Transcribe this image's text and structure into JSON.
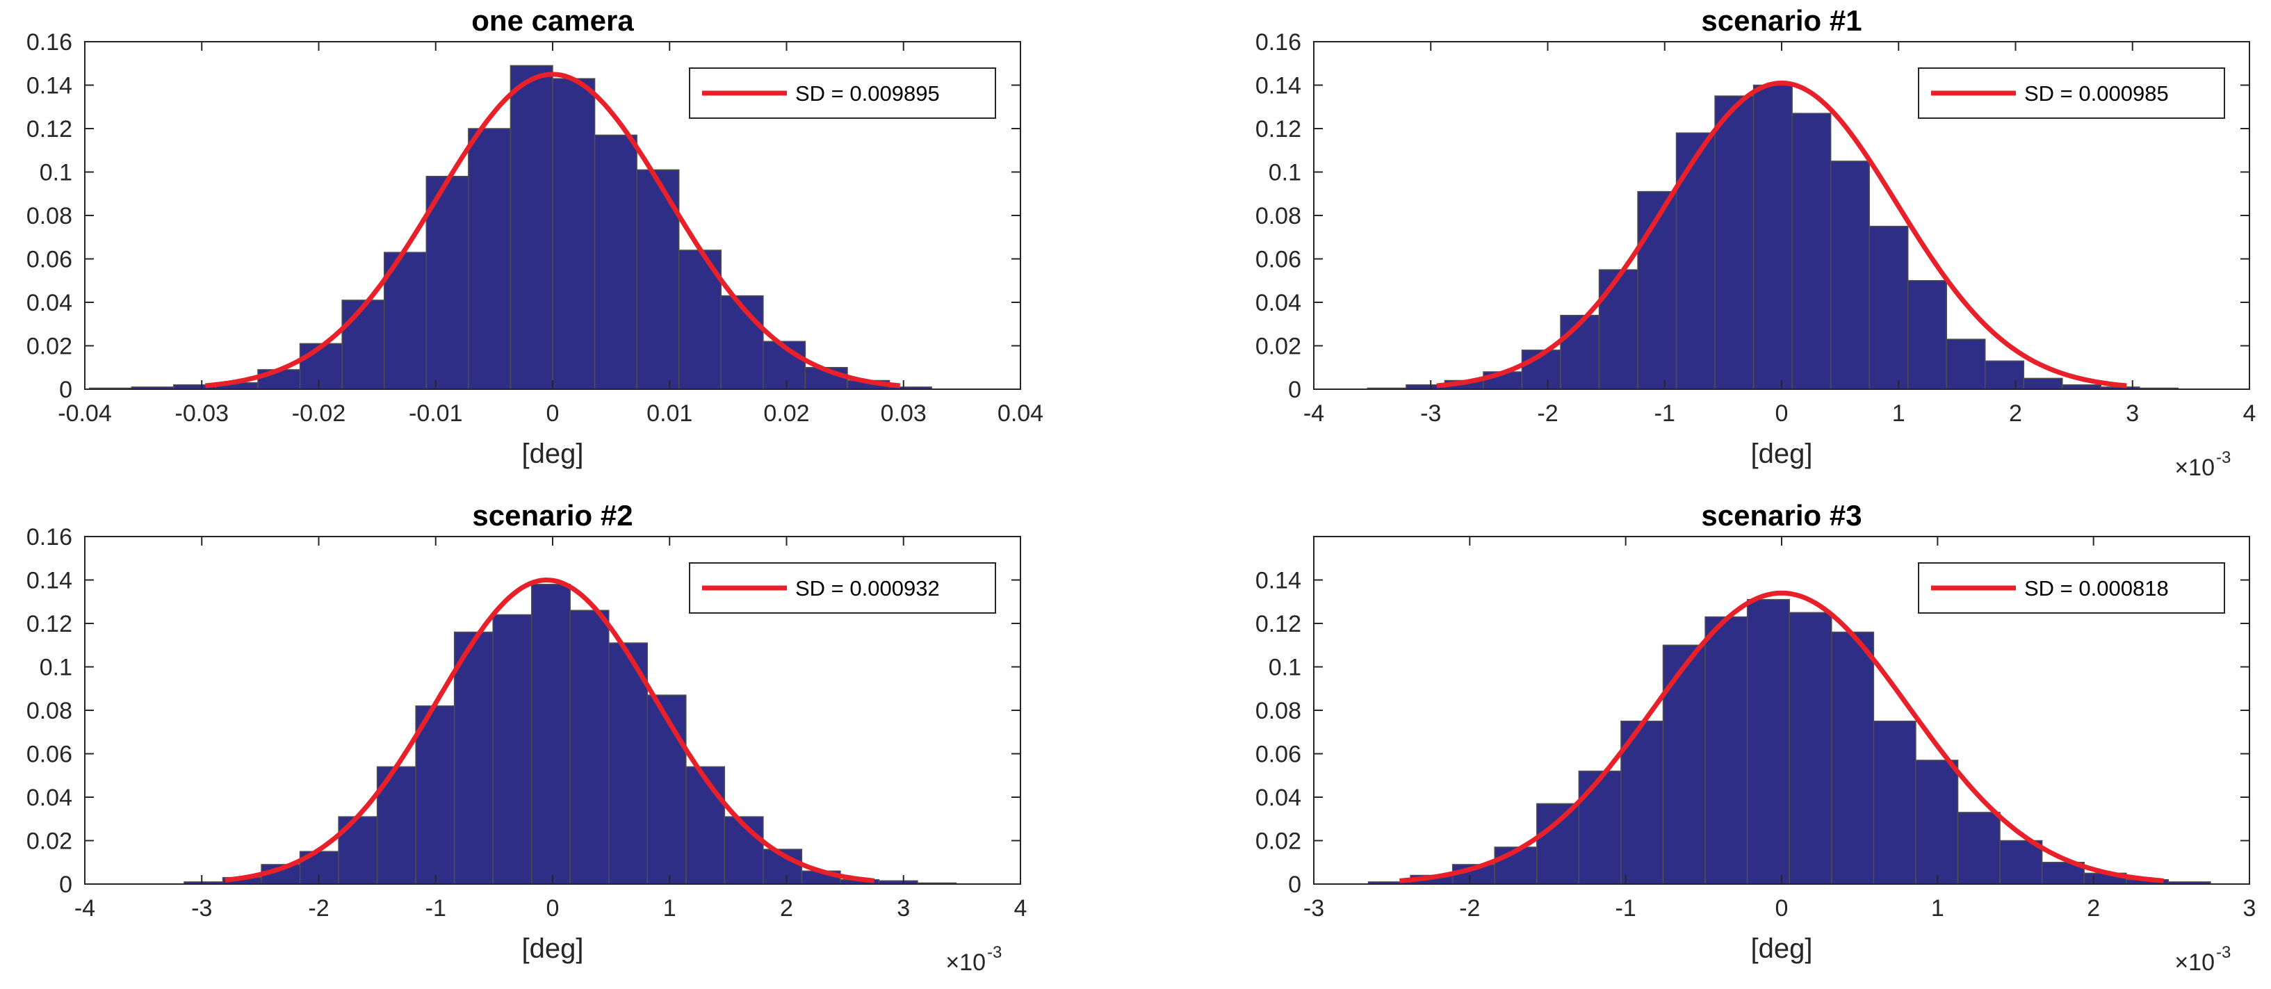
{
  "colors": {
    "bar_fill": "#2e2e86",
    "bar_edge": "#4e4e4e",
    "fit_line": "#e8202a",
    "axis": "#262626"
  },
  "chart_data": [
    {
      "type": "bar",
      "title": "one camera",
      "xlabel": "[deg]",
      "ylabel": "",
      "x_multiplier": "",
      "xlim": [
        -0.04,
        0.04
      ],
      "ylim": [
        0,
        0.16
      ],
      "xticks": [
        -0.04,
        -0.03,
        -0.02,
        -0.01,
        0,
        0.01,
        0.02,
        0.03,
        0.04
      ],
      "xtick_labels": [
        "-0.04",
        "-0.03",
        "-0.02",
        "-0.01",
        "0",
        "0.01",
        "0.02",
        "0.03",
        "0.04"
      ],
      "yticks": [
        0,
        0.02,
        0.04,
        0.06,
        0.08,
        0.1,
        0.12,
        0.14,
        0.16
      ],
      "ytick_labels": [
        "0",
        "0.02",
        "0.04",
        "0.06",
        "0.08",
        "0.1",
        "0.12",
        "0.14",
        "0.16"
      ],
      "bin_edges": [
        -0.0396,
        -0.036,
        -0.0324,
        -0.0288,
        -0.0252,
        -0.0216,
        -0.018,
        -0.0144,
        -0.0108,
        -0.0072,
        -0.0036,
        0.0,
        0.0036,
        0.0072,
        0.0108,
        0.0144,
        0.018,
        0.0216,
        0.0252,
        0.0288,
        0.0324
      ],
      "values": [
        0.0005,
        0.001,
        0.002,
        0.003,
        0.009,
        0.021,
        0.041,
        0.063,
        0.098,
        0.12,
        0.149,
        0.143,
        0.117,
        0.101,
        0.064,
        0.043,
        0.022,
        0.01,
        0.004,
        0.001
      ],
      "fit": {
        "sd": 0.009895,
        "mean": 0,
        "peak": 0.145,
        "x_range": [
          -0.0297,
          0.0297
        ]
      },
      "legend": {
        "label": "SD = 0.009895",
        "position": "top-right"
      }
    },
    {
      "type": "bar",
      "title": "scenario #1",
      "xlabel": "[deg]",
      "ylabel": "",
      "x_multiplier": "×10",
      "x_multiplier_exp": "-3",
      "xlim": [
        -4,
        4
      ],
      "ylim": [
        0,
        0.16
      ],
      "xticks": [
        -4,
        -3,
        -2,
        -1,
        0,
        1,
        2,
        3,
        4
      ],
      "xtick_labels": [
        "-4",
        "-3",
        "-2",
        "-1",
        "0",
        "1",
        "2",
        "3",
        "4"
      ],
      "yticks": [
        0,
        0.02,
        0.04,
        0.06,
        0.08,
        0.1,
        0.12,
        0.14,
        0.16
      ],
      "ytick_labels": [
        "0",
        "0.02",
        "0.04",
        "0.06",
        "0.08",
        "0.1",
        "0.12",
        "0.14",
        "0.16"
      ],
      "bin_edges": [
        -3.54,
        -3.21,
        -2.88,
        -2.55,
        -2.22,
        -1.89,
        -1.56,
        -1.23,
        -0.9,
        -0.57,
        -0.24,
        0.09,
        0.42,
        0.75,
        1.08,
        1.41,
        1.74,
        2.07,
        2.4,
        2.73,
        3.06,
        3.39
      ],
      "values": [
        0.0005,
        0.002,
        0.004,
        0.008,
        0.018,
        0.034,
        0.055,
        0.091,
        0.118,
        0.135,
        0.14,
        0.127,
        0.105,
        0.075,
        0.05,
        0.023,
        0.013,
        0.005,
        0.002,
        0.001,
        0.0005
      ],
      "fit": {
        "sd": 0.000985,
        "mean": 0,
        "peak": 0.141,
        "x_range": [
          -2.95,
          2.95
        ]
      },
      "legend": {
        "label": "SD = 0.000985",
        "position": "top-right"
      }
    },
    {
      "type": "bar",
      "title": "scenario #2",
      "xlabel": "[deg]",
      "ylabel": "",
      "x_multiplier": "×10",
      "x_multiplier_exp": "-3",
      "xlim": [
        -4,
        4
      ],
      "ylim": [
        0,
        0.16
      ],
      "xticks": [
        -4,
        -3,
        -2,
        -1,
        0,
        1,
        2,
        3,
        4
      ],
      "xtick_labels": [
        "-4",
        "-3",
        "-2",
        "-1",
        "0",
        "1",
        "2",
        "3",
        "4"
      ],
      "yticks": [
        0,
        0.02,
        0.04,
        0.06,
        0.08,
        0.1,
        0.12,
        0.14,
        0.16
      ],
      "ytick_labels": [
        "0",
        "0.02",
        "0.04",
        "0.06",
        "0.08",
        "0.1",
        "0.12",
        "0.14",
        "0.16"
      ],
      "bin_edges": [
        -3.15,
        -2.82,
        -2.49,
        -2.16,
        -1.83,
        -1.5,
        -1.17,
        -0.84,
        -0.51,
        -0.18,
        0.15,
        0.48,
        0.81,
        1.14,
        1.47,
        1.8,
        2.13,
        2.46,
        2.79,
        3.12,
        3.45
      ],
      "values": [
        0.001,
        0.003,
        0.009,
        0.015,
        0.031,
        0.054,
        0.082,
        0.116,
        0.124,
        0.138,
        0.126,
        0.111,
        0.087,
        0.054,
        0.031,
        0.016,
        0.006,
        0.002,
        0.0015,
        0.0005
      ],
      "fit": {
        "sd": 0.000932,
        "mean": -0.05,
        "peak": 0.14,
        "x_range": [
          -2.8,
          2.75
        ]
      },
      "legend": {
        "label": "SD = 0.000932",
        "position": "top-right"
      }
    },
    {
      "type": "bar",
      "title": "scenario #3",
      "xlabel": "[deg]",
      "ylabel": "",
      "x_multiplier": "×10",
      "x_multiplier_exp": "-3",
      "xlim": [
        -3,
        3
      ],
      "ylim": [
        0,
        0.16
      ],
      "xticks": [
        -3,
        -2,
        -1,
        0,
        1,
        2,
        3
      ],
      "xtick_labels": [
        "-3",
        "-2",
        "-1",
        "0",
        "1",
        "2",
        "3"
      ],
      "yticks": [
        0,
        0.02,
        0.04,
        0.06,
        0.08,
        0.1,
        0.12,
        0.14
      ],
      "ytick_labels": [
        "0",
        "0.02",
        "0.04",
        "0.06",
        "0.08",
        "0.1",
        "0.12",
        "0.14"
      ],
      "bin_edges": [
        -2.65,
        -2.38,
        -2.11,
        -1.84,
        -1.57,
        -1.3,
        -1.03,
        -0.76,
        -0.49,
        -0.22,
        0.05,
        0.32,
        0.59,
        0.86,
        1.13,
        1.4,
        1.67,
        1.94,
        2.21,
        2.48,
        2.75
      ],
      "values": [
        0.001,
        0.004,
        0.009,
        0.017,
        0.037,
        0.052,
        0.075,
        0.11,
        0.123,
        0.131,
        0.125,
        0.116,
        0.075,
        0.057,
        0.033,
        0.02,
        0.01,
        0.005,
        0.002,
        0.001
      ],
      "fit": {
        "sd": 0.000818,
        "mean": 0,
        "peak": 0.134,
        "x_range": [
          -2.45,
          2.45
        ]
      },
      "legend": {
        "label": "SD = 0.000818",
        "position": "top-right"
      }
    }
  ]
}
